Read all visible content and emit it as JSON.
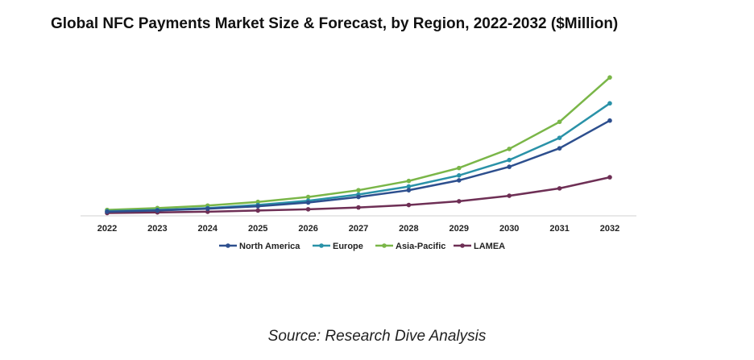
{
  "chart_data": {
    "type": "line",
    "title": "Global NFC Payments Market Size & Forecast, by Region, 2022-2032 ($Million)",
    "xlabel": "",
    "ylabel": "",
    "categories": [
      "2022",
      "2023",
      "2024",
      "2025",
      "2026",
      "2027",
      "2028",
      "2029",
      "2030",
      "2031",
      "2032"
    ],
    "ylim": [
      0,
      100
    ],
    "series": [
      {
        "name": "North America",
        "color": "#2d4f8e",
        "values": [
          2,
          3,
          4.5,
          6.5,
          9.5,
          14,
          19.5,
          27.5,
          38.5,
          53.5,
          76
        ]
      },
      {
        "name": "Europe",
        "color": "#2a92a8",
        "values": [
          2.5,
          3.5,
          5,
          7.5,
          11,
          16,
          22.5,
          31.5,
          44,
          62,
          90
        ]
      },
      {
        "name": "Asia-Pacific",
        "color": "#7ab648",
        "values": [
          3.5,
          5,
          7,
          10,
          14,
          19.5,
          27,
          37.5,
          53,
          75,
          111
        ]
      },
      {
        "name": "LAMEA",
        "color": "#6e2f55",
        "values": [
          1,
          1.5,
          2,
          3,
          4,
          5.5,
          7.5,
          10.5,
          15,
          21,
          30
        ]
      }
    ],
    "legend_position": "bottom",
    "grid": false
  },
  "source": "Source: Research Dive Analysis"
}
